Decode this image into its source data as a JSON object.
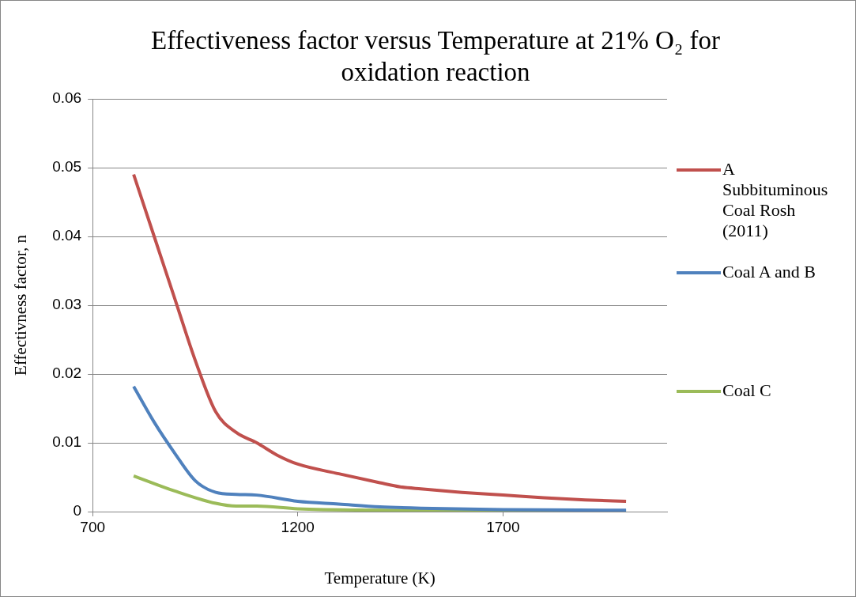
{
  "chart_data": {
    "type": "line",
    "title": "Effectiveness factor versus Temperature at 21% O₂ for oxidation reaction",
    "xlabel": "Temperature (K)",
    "ylabel": "Effectivness factor, n",
    "xlim": [
      700,
      2100
    ],
    "xticks": [
      700,
      1200,
      1700
    ],
    "ylim": [
      0,
      0.06
    ],
    "yticks": [
      0,
      0.01,
      0.02,
      0.03,
      0.04,
      0.05,
      0.06
    ],
    "grid": "y",
    "legend": "right",
    "marker": "none",
    "line_style": "solid",
    "series": [
      {
        "name": "A Subbituminous Coal Rosh (2011)",
        "color": "#c0504d",
        "x": [
          800,
          850,
          900,
          950,
          1000,
          1050,
          1100,
          1150,
          1200,
          1300,
          1400,
          1450,
          1500,
          1600,
          1700,
          1800,
          1900,
          2000
        ],
        "values": [
          0.049,
          0.04,
          0.031,
          0.022,
          0.0145,
          0.0115,
          0.01,
          0.0082,
          0.0069,
          0.0055,
          0.0042,
          0.0036,
          0.0033,
          0.0028,
          0.0024,
          0.002,
          0.0017,
          0.0015
        ]
      },
      {
        "name": "Coal A and B",
        "color": "#4f81bd",
        "x": [
          800,
          850,
          900,
          950,
          1000,
          1050,
          1100,
          1200,
          1300,
          1400,
          1500,
          1700,
          2000
        ],
        "values": [
          0.0182,
          0.013,
          0.0085,
          0.0045,
          0.0028,
          0.0025,
          0.0024,
          0.0015,
          0.0011,
          0.0007,
          0.0005,
          0.0003,
          0.0002
        ]
      },
      {
        "name": "Coal C",
        "color": "#9bbb59",
        "x": [
          800,
          900,
          1000,
          1050,
          1100,
          1200,
          1400,
          1700,
          2000
        ],
        "values": [
          0.0052,
          0.003,
          0.0012,
          0.0008,
          0.0008,
          0.0004,
          0.0002,
          0.0001,
          0.0001
        ]
      }
    ]
  }
}
